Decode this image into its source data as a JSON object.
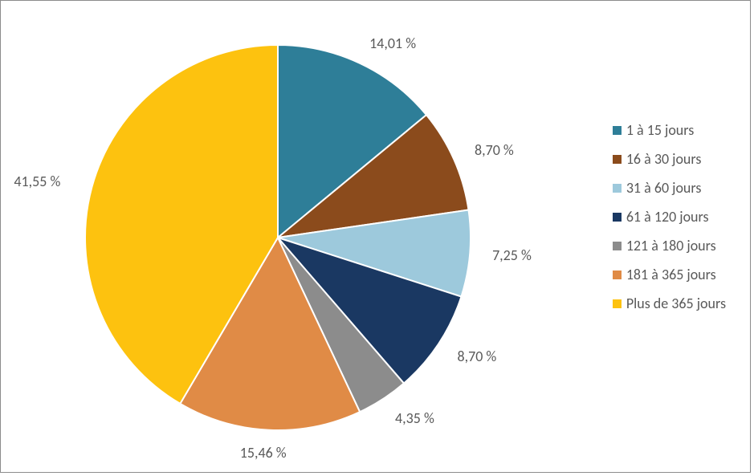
{
  "chart": {
    "type": "pie",
    "background_color": "#ffffff",
    "border_color": "#8c8c8c",
    "slice_border_color": "#ffffff",
    "slice_border_width": 2,
    "label_color": "#595959",
    "label_fontsize": 18,
    "legend_fontsize": 18,
    "legend_swatch_size": 11,
    "start_angle_deg": 0,
    "slices": [
      {
        "key": "s0",
        "label": "1 à 15 jours",
        "value": 14.01,
        "display": "14,01 %",
        "color": "#2e7e98"
      },
      {
        "key": "s1",
        "label": "16 à 30 jours",
        "value": 8.7,
        "display": "8,70 %",
        "color": "#8b4b1c"
      },
      {
        "key": "s2",
        "label": "31 à 60 jours",
        "value": 7.25,
        "display": "7,25 %",
        "color": "#9dc9dc"
      },
      {
        "key": "s3",
        "label": "61 à 120 jours",
        "value": 8.7,
        "display": "8,70 %",
        "color": "#1a3862"
      },
      {
        "key": "s4",
        "label": "121 à 180 jours",
        "value": 4.35,
        "display": "4,35 %",
        "color": "#8c8c8c"
      },
      {
        "key": "s5",
        "label": "181 à 365 jours",
        "value": 15.46,
        "display": "15,46 %",
        "color": "#e08b46"
      },
      {
        "key": "s6",
        "label": "Plus de 365 jours",
        "value": 41.55,
        "display": "41,55 %",
        "color": "#fdc20f"
      }
    ]
  }
}
